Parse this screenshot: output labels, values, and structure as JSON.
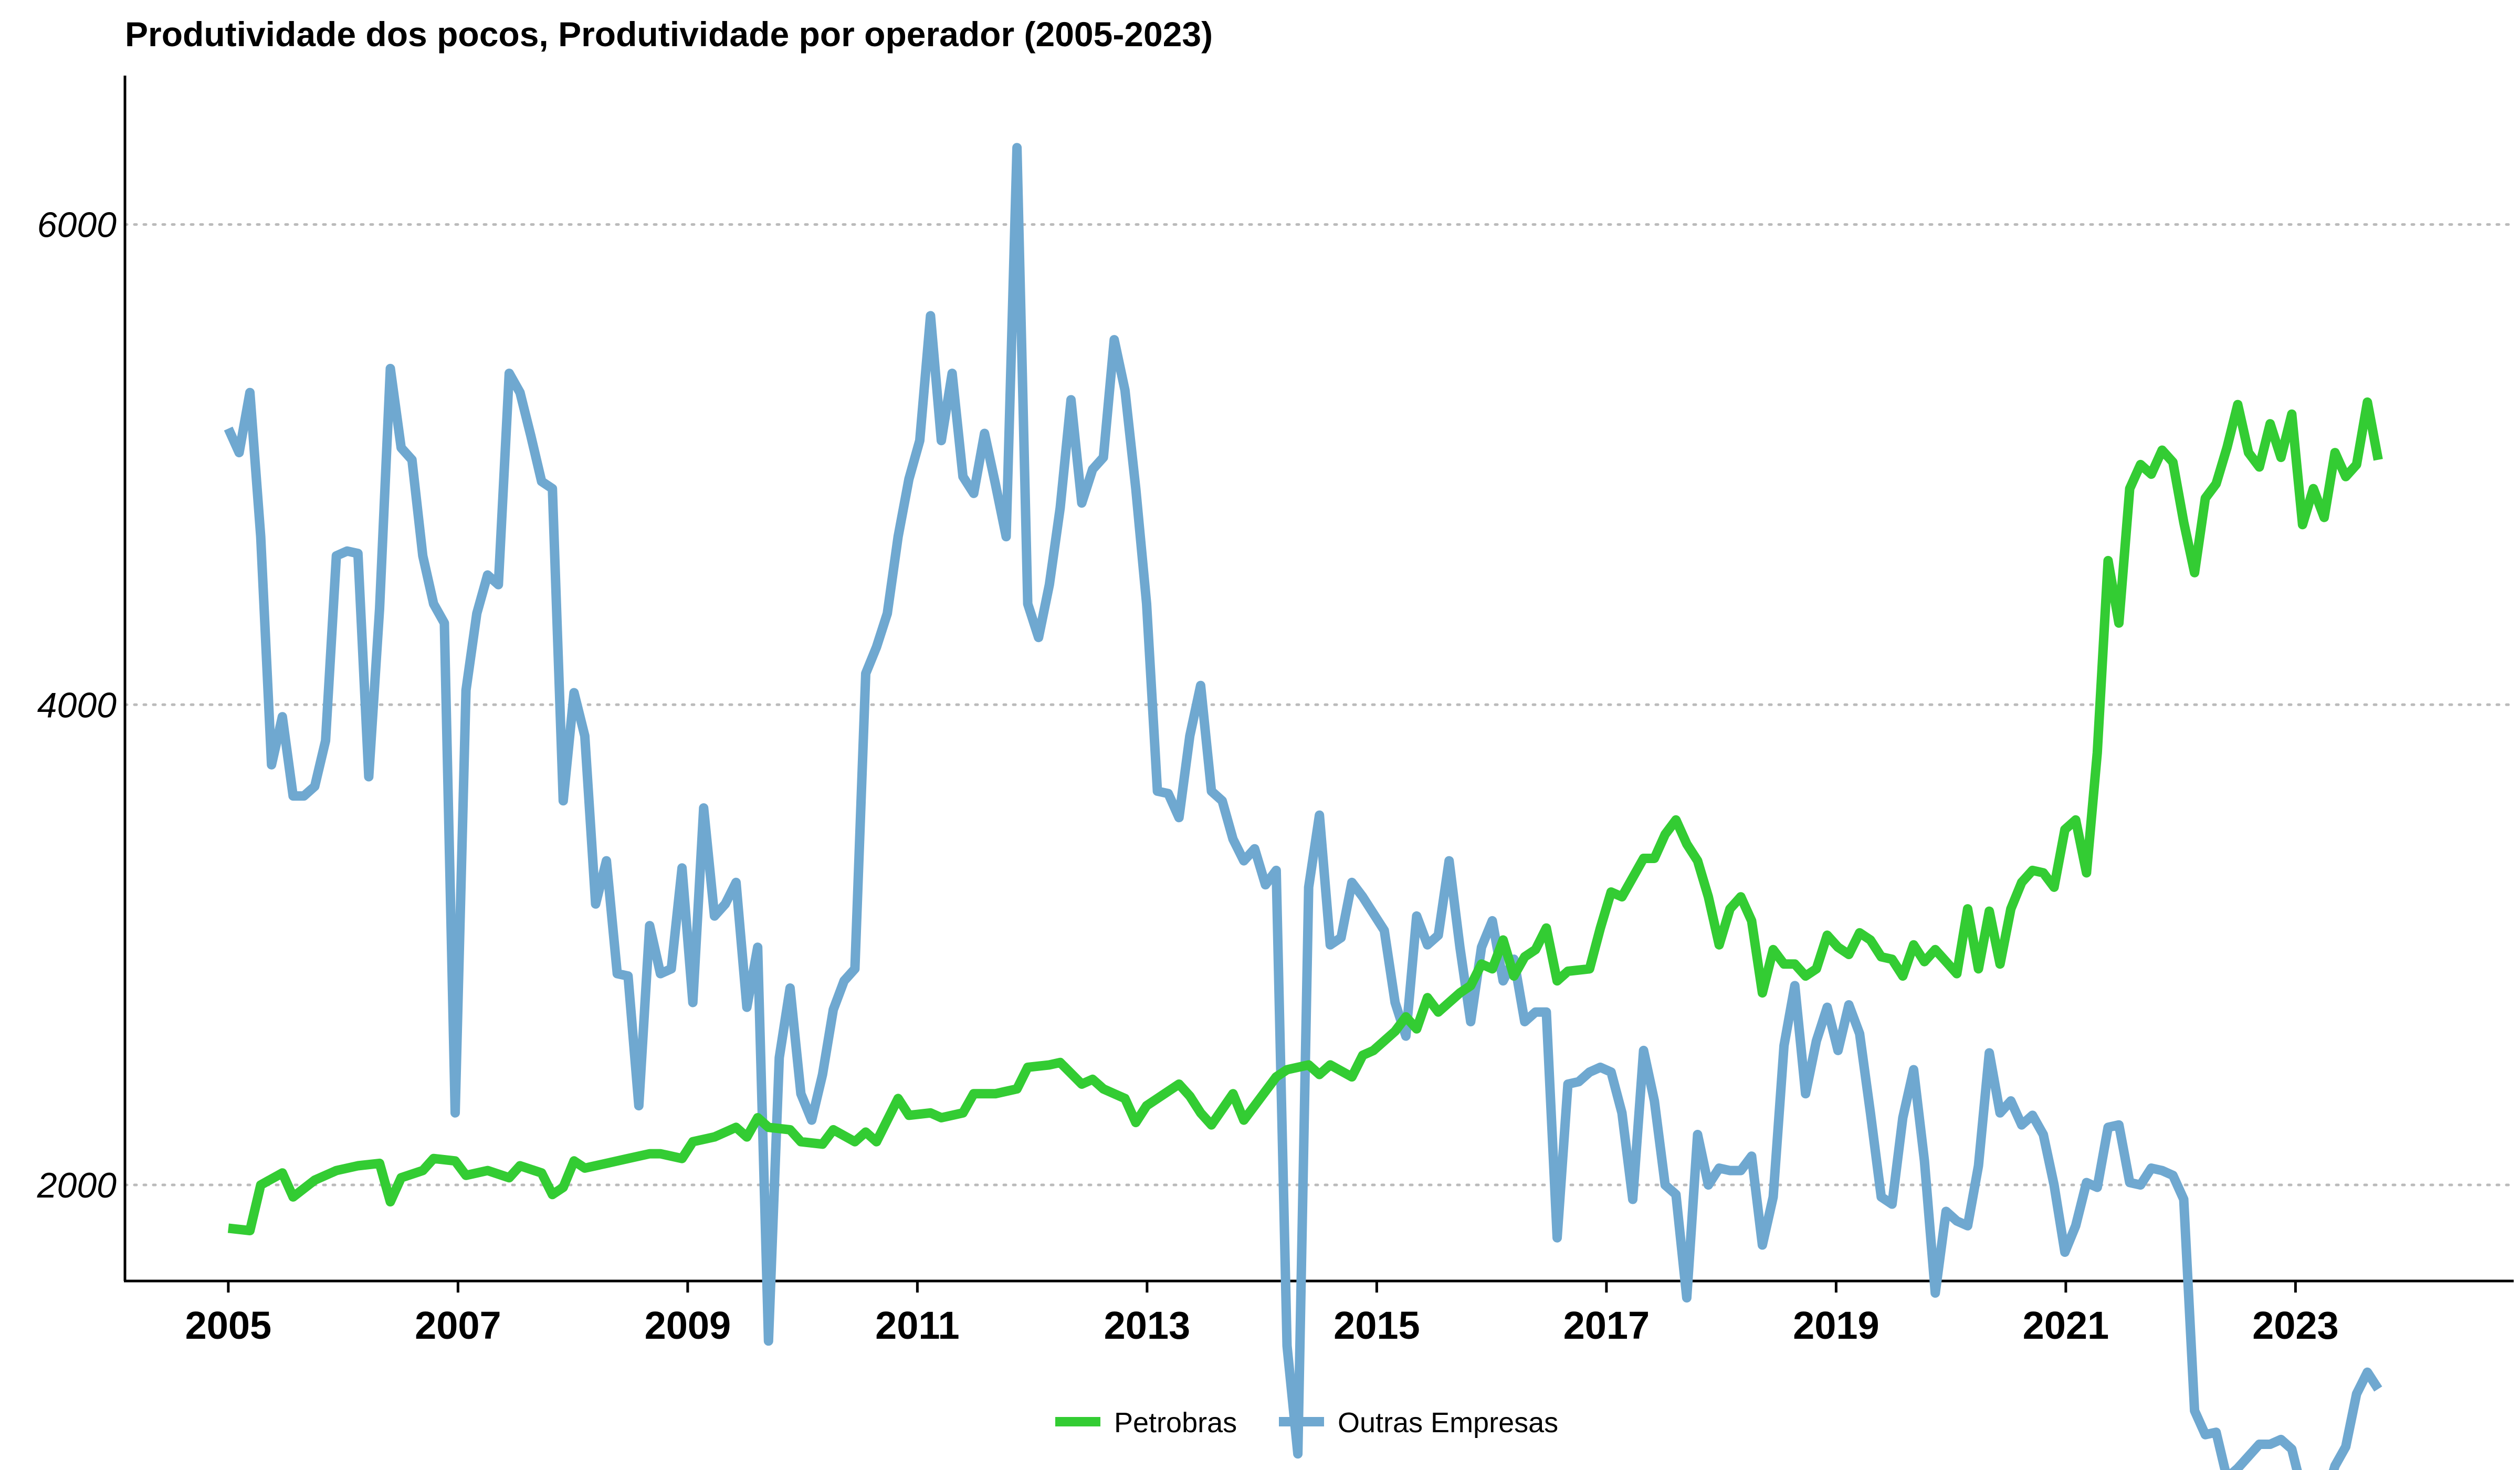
{
  "chart_data": {
    "type": "line",
    "title": "Produtividade dos pocos, Produtividade por operador (2005-2023)",
    "xlabel": "",
    "ylabel": "",
    "x_range": [
      2004.1,
      2024.9
    ],
    "ylim": [
      1600,
      6620
    ],
    "y_ticks": [
      2000,
      4000,
      6000
    ],
    "x_ticks": [
      2005,
      2007,
      2009,
      2011,
      2013,
      2015,
      2017,
      2019,
      2021,
      2023
    ],
    "grid": "horizontal dotted",
    "legend_position": "bottom",
    "series": [
      {
        "name": "Petrobras",
        "color": "#33cc33",
        "points": [
          [
            2005.0,
            1820
          ],
          [
            2005.2,
            1810
          ],
          [
            2005.3,
            2000
          ],
          [
            2005.5,
            2050
          ],
          [
            2005.6,
            1950
          ],
          [
            2005.8,
            2020
          ],
          [
            2006.0,
            2060
          ],
          [
            2006.2,
            2080
          ],
          [
            2006.4,
            2090
          ],
          [
            2006.5,
            1930
          ],
          [
            2006.6,
            2030
          ],
          [
            2006.8,
            2060
          ],
          [
            2006.9,
            2110
          ],
          [
            2007.1,
            2100
          ],
          [
            2007.2,
            2040
          ],
          [
            2007.4,
            2060
          ],
          [
            2007.6,
            2030
          ],
          [
            2007.7,
            2080
          ],
          [
            2007.9,
            2050
          ],
          [
            2008.0,
            1960
          ],
          [
            2008.1,
            1990
          ],
          [
            2008.2,
            2100
          ],
          [
            2008.3,
            2070
          ],
          [
            2008.5,
            2090
          ],
          [
            2008.7,
            2110
          ],
          [
            2008.9,
            2130
          ],
          [
            2009.0,
            2130
          ],
          [
            2009.2,
            2110
          ],
          [
            2009.3,
            2180
          ],
          [
            2009.5,
            2200
          ],
          [
            2009.7,
            2240
          ],
          [
            2009.8,
            2200
          ],
          [
            2009.9,
            2280
          ],
          [
            2010.0,
            2240
          ],
          [
            2010.2,
            2230
          ],
          [
            2010.3,
            2180
          ],
          [
            2010.5,
            2170
          ],
          [
            2010.6,
            2230
          ],
          [
            2010.8,
            2180
          ],
          [
            2010.9,
            2220
          ],
          [
            2011.0,
            2180
          ],
          [
            2011.2,
            2360
          ],
          [
            2011.3,
            2290
          ],
          [
            2011.5,
            2300
          ],
          [
            2011.6,
            2280
          ],
          [
            2011.8,
            2300
          ],
          [
            2011.9,
            2380
          ],
          [
            2012.1,
            2380
          ],
          [
            2012.3,
            2400
          ],
          [
            2012.4,
            2490
          ],
          [
            2012.6,
            2500
          ],
          [
            2012.7,
            2510
          ],
          [
            2012.9,
            2420
          ],
          [
            2013.0,
            2440
          ],
          [
            2013.1,
            2400
          ],
          [
            2013.2,
            2380
          ],
          [
            2013.3,
            2360
          ],
          [
            2013.4,
            2260
          ],
          [
            2013.5,
            2330
          ],
          [
            2013.6,
            2360
          ],
          [
            2013.8,
            2420
          ],
          [
            2013.9,
            2370
          ],
          [
            2014.0,
            2300
          ],
          [
            2014.1,
            2250
          ],
          [
            2014.3,
            2380
          ],
          [
            2014.4,
            2270
          ],
          [
            2014.5,
            2330
          ],
          [
            2014.7,
            2450
          ],
          [
            2014.8,
            2480
          ],
          [
            2015.0,
            2500
          ],
          [
            2015.1,
            2460
          ],
          [
            2015.2,
            2500
          ],
          [
            2015.4,
            2450
          ],
          [
            2015.5,
            2540
          ],
          [
            2015.6,
            2560
          ],
          [
            2015.7,
            2600
          ],
          [
            2015.8,
            2640
          ],
          [
            2015.9,
            2700
          ],
          [
            2016.0,
            2650
          ],
          [
            2016.1,
            2780
          ],
          [
            2016.2,
            2720
          ],
          [
            2016.4,
            2800
          ],
          [
            2016.5,
            2830
          ],
          [
            2016.6,
            2920
          ],
          [
            2016.7,
            2900
          ],
          [
            2016.8,
            3020
          ],
          [
            2016.9,
            2870
          ],
          [
            2017.0,
            2950
          ],
          [
            2017.1,
            2980
          ],
          [
            2017.2,
            3070
          ],
          [
            2017.3,
            2850
          ],
          [
            2017.4,
            2890
          ],
          [
            2017.6,
            2900
          ],
          [
            2017.7,
            3070
          ],
          [
            2017.8,
            3220
          ],
          [
            2017.9,
            3200
          ],
          [
            2018.0,
            3280
          ],
          [
            2018.1,
            3360
          ],
          [
            2018.2,
            3360
          ],
          [
            2018.3,
            3460
          ],
          [
            2018.4,
            3520
          ],
          [
            2018.5,
            3420
          ],
          [
            2018.6,
            3350
          ],
          [
            2018.7,
            3200
          ],
          [
            2018.8,
            3000
          ],
          [
            2018.9,
            3150
          ],
          [
            2019.0,
            3200
          ],
          [
            2019.1,
            3100
          ],
          [
            2019.2,
            2800
          ],
          [
            2019.3,
            2980
          ],
          [
            2019.4,
            2920
          ],
          [
            2019.5,
            2920
          ],
          [
            2019.6,
            2870
          ],
          [
            2019.7,
            2900
          ],
          [
            2019.8,
            3040
          ],
          [
            2019.9,
            2990
          ],
          [
            2020.0,
            2960
          ],
          [
            2020.1,
            3050
          ],
          [
            2020.2,
            3020
          ],
          [
            2020.3,
            2950
          ],
          [
            2020.4,
            2940
          ],
          [
            2020.5,
            2870
          ],
          [
            2020.6,
            3000
          ],
          [
            2020.7,
            2930
          ],
          [
            2020.8,
            2980
          ],
          [
            2020.9,
            2930
          ],
          [
            2021.0,
            2880
          ],
          [
            2021.1,
            3150
          ],
          [
            2021.2,
            2900
          ],
          [
            2021.3,
            3140
          ],
          [
            2021.4,
            2920
          ],
          [
            2021.5,
            3150
          ],
          [
            2021.6,
            3260
          ],
          [
            2021.7,
            3310
          ],
          [
            2021.8,
            3300
          ],
          [
            2021.9,
            3240
          ],
          [
            2022.0,
            3480
          ],
          [
            2022.1,
            3520
          ],
          [
            2022.2,
            3300
          ],
          [
            2022.3,
            3800
          ],
          [
            2022.4,
            4600
          ],
          [
            2022.5,
            4340
          ],
          [
            2022.6,
            4900
          ],
          [
            2022.7,
            5000
          ],
          [
            2022.8,
            4960
          ],
          [
            2022.9,
            5060
          ],
          [
            2023.0,
            5010
          ],
          [
            2023.1,
            4760
          ],
          [
            2023.2,
            4550
          ],
          [
            2023.3,
            4860
          ],
          [
            2023.4,
            4920
          ],
          [
            2023.5,
            5070
          ],
          [
            2023.6,
            5250
          ],
          [
            2023.7,
            5050
          ],
          [
            2023.8,
            4990
          ],
          [
            2023.9,
            5170
          ],
          [
            2024.0,
            5030
          ],
          [
            2024.1,
            5210
          ],
          [
            2024.2,
            4750
          ],
          [
            2024.3,
            4900
          ],
          [
            2024.4,
            4780
          ],
          [
            2024.5,
            5050
          ],
          [
            2024.6,
            4950
          ],
          [
            2024.7,
            5000
          ],
          [
            2024.8,
            5260
          ],
          [
            2024.9,
            5020
          ]
        ]
      },
      {
        "name": "Outras Empresas",
        "color": "#6fa8d0",
        "points": []
      }
    ]
  },
  "legend": {
    "items": [
      {
        "label": "Petrobras",
        "color": "#33cc33"
      },
      {
        "label": "Outras Empresas",
        "color": "#6fa8d0"
      }
    ]
  }
}
